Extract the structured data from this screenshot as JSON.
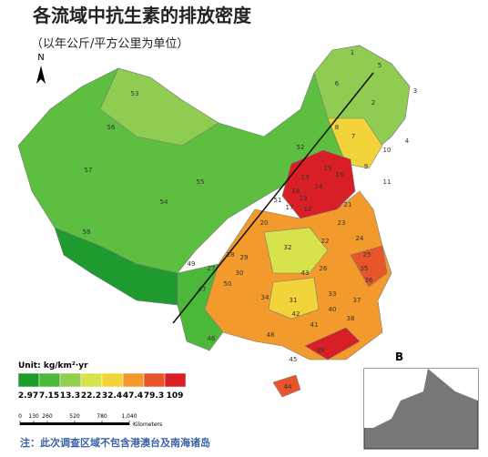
{
  "map": {
    "title": "各流域中抗生素的排放密度",
    "subtitle": "（以年公斤/平方公里为单位）",
    "north": "N",
    "panel_label": "B",
    "legend": {
      "unit": "Unit: kg/km²·yr",
      "colors": [
        "#1f9a2e",
        "#4cb83a",
        "#93cf4e",
        "#d7e34b",
        "#f2d43a",
        "#f39a2c",
        "#e9552a",
        "#d81f26"
      ],
      "breaks": [
        2.97,
        7.15,
        13.3,
        22.2,
        32.4,
        47.4,
        79.3,
        109
      ]
    },
    "scale_bar": {
      "ticks": [
        0,
        130,
        260,
        520,
        780,
        {
          "value": 1040,
          "label": "1,040"
        }
      ],
      "unit": "Kilometers"
    },
    "regions": [
      "1",
      "2",
      "3",
      "4",
      "5",
      "6",
      "7",
      "8",
      "9",
      "10",
      "11",
      "12",
      "13",
      "14",
      "15",
      "16",
      "17",
      "18",
      "19",
      "20",
      "21",
      "22",
      "23",
      "24",
      "25",
      "26",
      "27",
      "28",
      "29",
      "30",
      "31",
      "32",
      "33",
      "34",
      "35",
      "36",
      "37",
      "38",
      "39",
      "40",
      "41",
      "42",
      "43",
      "44",
      "45",
      "46",
      "47",
      "48",
      "49",
      "50",
      "51",
      "52",
      "53",
      "54",
      "55",
      "56",
      "57",
      "58"
    ],
    "note": "注：此次调查区域不包含港澳台及南海诸岛"
  }
}
